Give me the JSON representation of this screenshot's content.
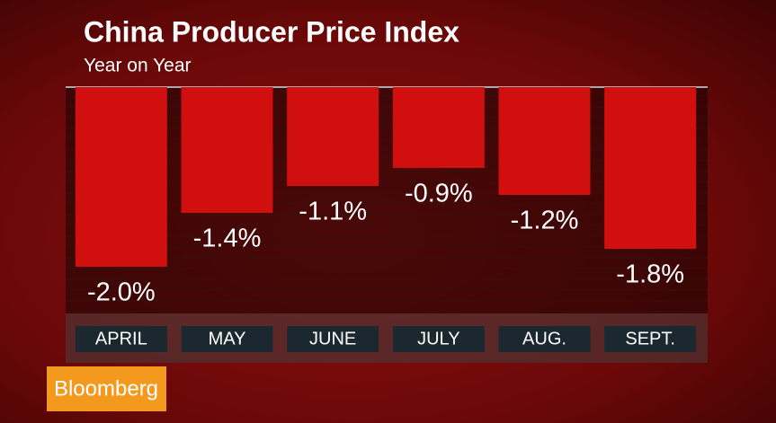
{
  "chart_data": {
    "type": "bar",
    "title": "China Producer Price Index",
    "subtitle": "Year on Year",
    "categories": [
      "APRIL",
      "MAY",
      "JUNE",
      "JULY",
      "AUG.",
      "SEPT."
    ],
    "values": [
      -2.0,
      -1.4,
      -1.1,
      -0.9,
      -1.2,
      -1.8
    ],
    "value_labels": [
      "-2.0%",
      "-1.4%",
      "-1.1%",
      "-0.9%",
      "-1.2%",
      "-1.8%"
    ],
    "color": "#d20f0f",
    "ylim": [
      -2.5,
      0
    ],
    "source": "Bloomberg"
  }
}
